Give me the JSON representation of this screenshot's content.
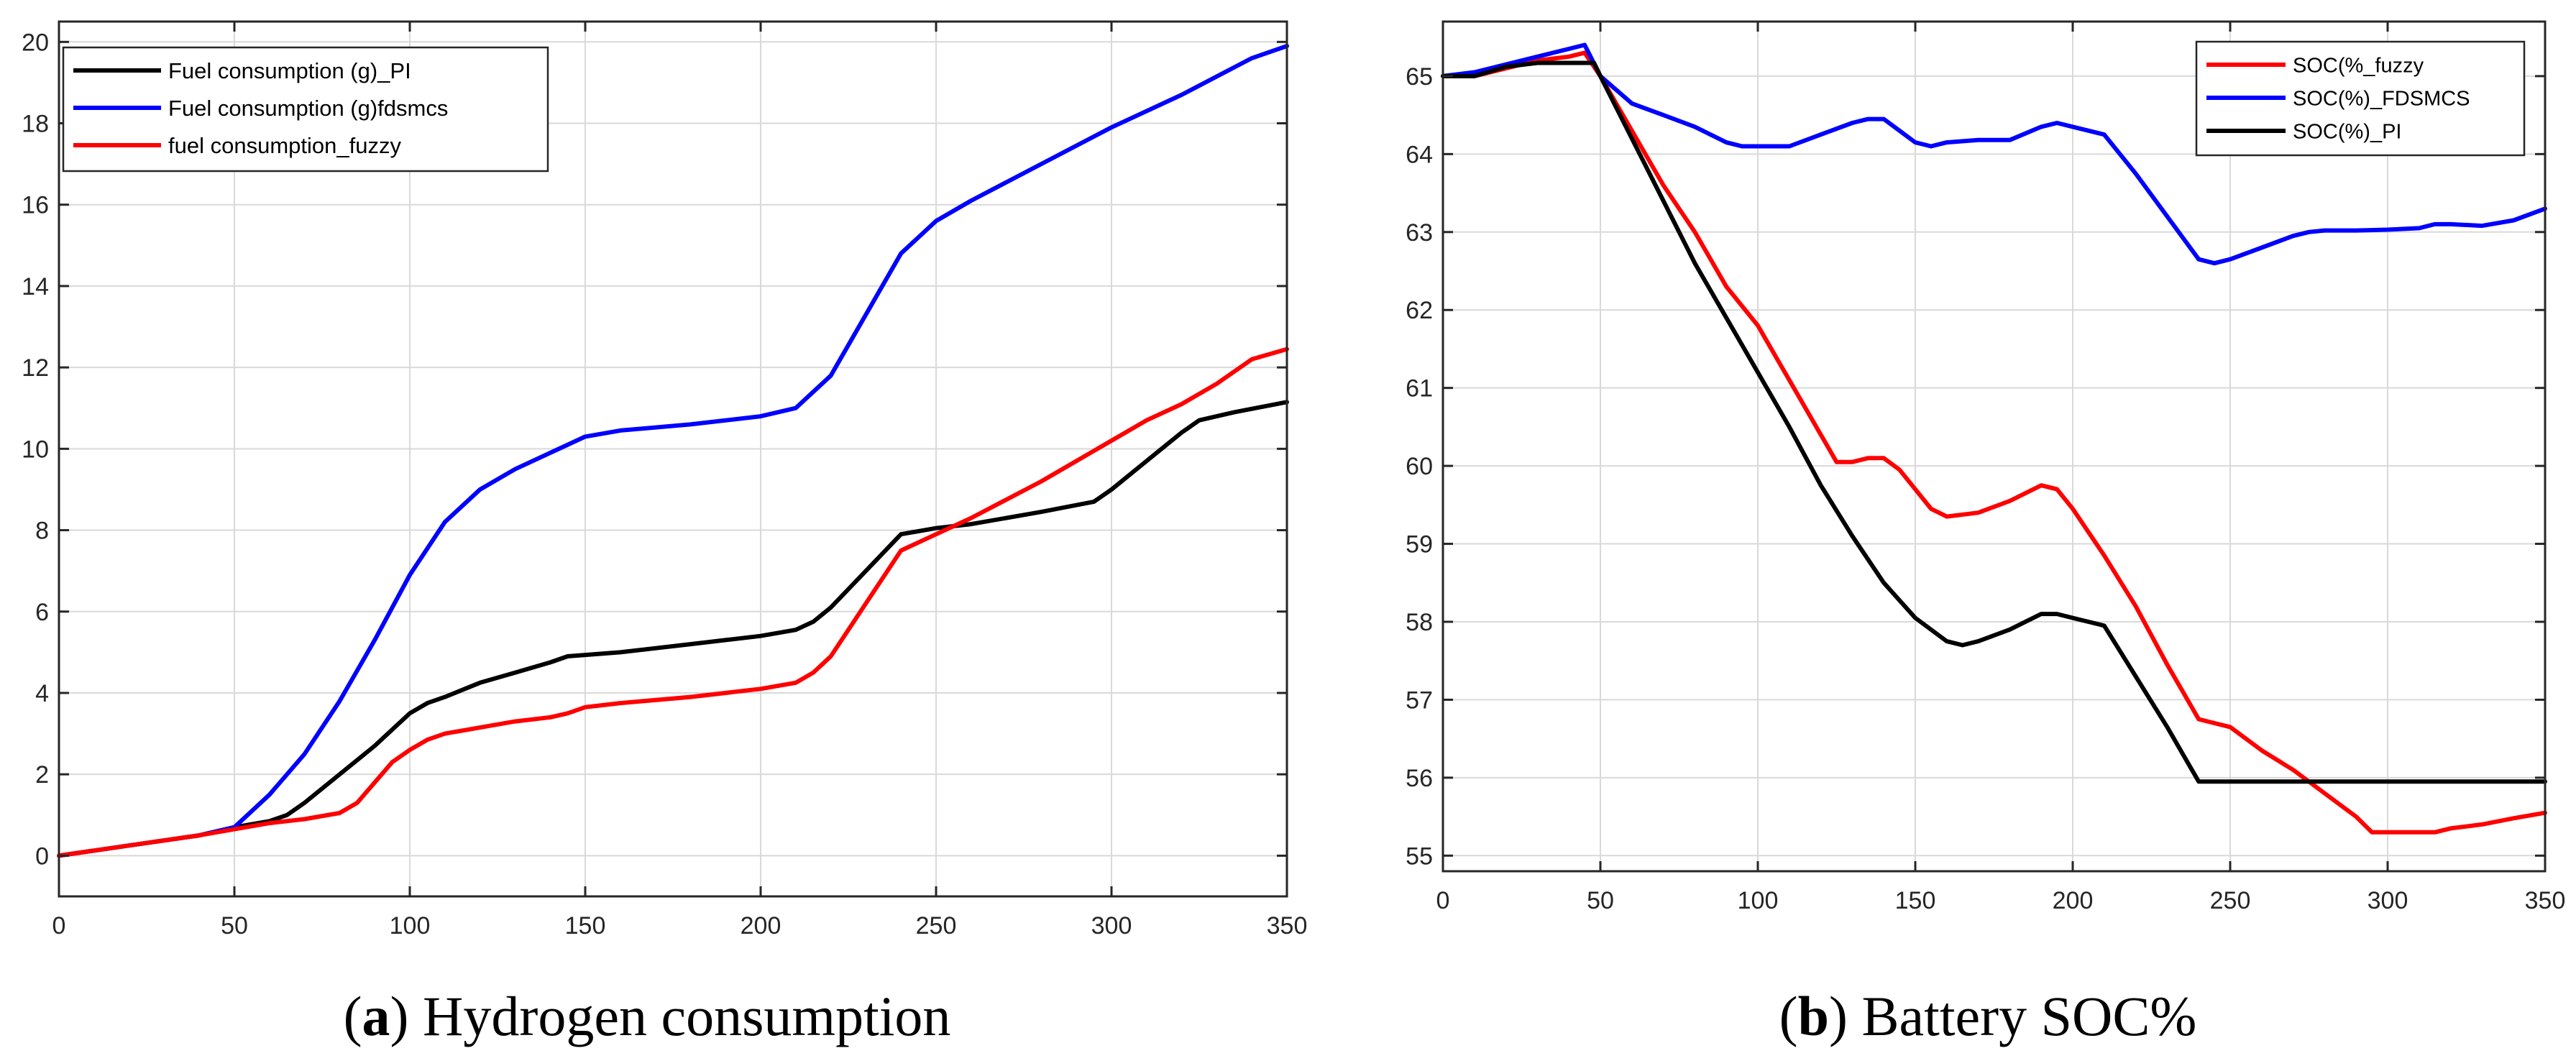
{
  "chart_data": [
    {
      "type": "line",
      "caption_letter": "a",
      "title": "Hydrogen consumption",
      "xlabel": "",
      "ylabel": "",
      "xlim": [
        0,
        350
      ],
      "ylim": [
        -1,
        20.5
      ],
      "xticks": [
        0,
        50,
        100,
        150,
        200,
        250,
        300,
        350
      ],
      "xtick_labels": [
        "0",
        "50",
        "100",
        "150",
        "200",
        "250",
        "300",
        "350"
      ],
      "yticks": [
        0,
        2,
        4,
        6,
        8,
        10,
        12,
        14,
        16,
        18,
        20
      ],
      "ytick_labels": [
        "0",
        "2",
        "4",
        "6",
        "8",
        "10",
        "12",
        "14",
        "16",
        "18",
        "20"
      ],
      "grid": true,
      "legend_position": "top-left",
      "series": [
        {
          "name": "Fuel consumption (g)_PI",
          "color": "#000000",
          "x": [
            0,
            20,
            40,
            50,
            60,
            65,
            70,
            80,
            90,
            95,
            100,
            105,
            110,
            120,
            130,
            140,
            145,
            160,
            180,
            190,
            200,
            210,
            215,
            220,
            230,
            240,
            250,
            260,
            280,
            295,
            300,
            310,
            320,
            325,
            335,
            350
          ],
          "y": [
            0,
            0.25,
            0.5,
            0.7,
            0.85,
            1.0,
            1.3,
            2.0,
            2.7,
            3.1,
            3.5,
            3.75,
            3.9,
            4.25,
            4.5,
            4.75,
            4.9,
            5.0,
            5.2,
            5.3,
            5.4,
            5.55,
            5.75,
            6.1,
            7.0,
            7.9,
            8.05,
            8.15,
            8.45,
            8.7,
            9.0,
            9.7,
            10.4,
            10.7,
            10.9,
            11.15
          ]
        },
        {
          "name": "Fuel consumption (g)fdsmcs",
          "color": "#0000ff",
          "x": [
            0,
            20,
            40,
            50,
            60,
            70,
            80,
            90,
            100,
            110,
            120,
            130,
            140,
            150,
            160,
            180,
            200,
            210,
            220,
            230,
            240,
            250,
            260,
            280,
            300,
            320,
            340,
            350
          ],
          "y": [
            0,
            0.25,
            0.5,
            0.7,
            1.5,
            2.5,
            3.8,
            5.3,
            6.9,
            8.2,
            9.0,
            9.5,
            9.9,
            10.3,
            10.45,
            10.6,
            10.8,
            11.0,
            11.8,
            13.3,
            14.8,
            15.6,
            16.1,
            17.0,
            17.9,
            18.7,
            19.6,
            19.9
          ]
        },
        {
          "name": "fuel consumption_fuzzy",
          "color": "#ff0000",
          "x": [
            0,
            20,
            40,
            50,
            60,
            70,
            80,
            85,
            90,
            95,
            100,
            105,
            110,
            120,
            130,
            140,
            145,
            150,
            160,
            180,
            200,
            210,
            215,
            220,
            230,
            240,
            250,
            260,
            280,
            300,
            310,
            320,
            330,
            340,
            350
          ],
          "y": [
            0,
            0.25,
            0.5,
            0.65,
            0.8,
            0.9,
            1.05,
            1.3,
            1.8,
            2.3,
            2.6,
            2.85,
            3.0,
            3.15,
            3.3,
            3.4,
            3.5,
            3.65,
            3.75,
            3.9,
            4.1,
            4.25,
            4.5,
            4.9,
            6.2,
            7.5,
            7.9,
            8.3,
            9.2,
            10.2,
            10.7,
            11.1,
            11.6,
            12.2,
            12.45
          ]
        }
      ]
    },
    {
      "type": "line",
      "caption_letter": "b",
      "title": "Battery SOC%",
      "xlabel": "",
      "ylabel": "",
      "xlim": [
        0,
        350
      ],
      "ylim": [
        54.8,
        65.7
      ],
      "xticks": [
        0,
        50,
        100,
        150,
        200,
        250,
        300,
        350
      ],
      "xtick_labels": [
        "0",
        "50",
        "100",
        "150",
        "200",
        "250",
        "300",
        "350"
      ],
      "yticks": [
        55,
        56,
        57,
        58,
        59,
        60,
        61,
        62,
        63,
        64,
        65
      ],
      "ytick_labels": [
        "55",
        "56",
        "57",
        "58",
        "59",
        "60",
        "61",
        "62",
        "63",
        "64",
        "65"
      ],
      "grid": true,
      "legend_position": "top-right",
      "series": [
        {
          "name": "SOC(%_fuzzy",
          "color": "#ff0000",
          "x": [
            0,
            10,
            20,
            30,
            40,
            45,
            50,
            60,
            70,
            80,
            90,
            100,
            110,
            120,
            125,
            130,
            135,
            140,
            145,
            150,
            155,
            160,
            170,
            180,
            190,
            195,
            200,
            210,
            220,
            230,
            240,
            245,
            250,
            260,
            270,
            280,
            290,
            295,
            300,
            310,
            315,
            320,
            330,
            340,
            350
          ],
          "y": [
            65.0,
            65.0,
            65.1,
            65.2,
            65.25,
            65.3,
            65.0,
            64.3,
            63.6,
            63.0,
            62.3,
            61.8,
            61.1,
            60.4,
            60.05,
            60.05,
            60.1,
            60.1,
            59.95,
            59.7,
            59.45,
            59.35,
            59.4,
            59.55,
            59.75,
            59.7,
            59.45,
            58.85,
            58.2,
            57.45,
            56.75,
            56.7,
            56.65,
            56.35,
            56.1,
            55.8,
            55.5,
            55.3,
            55.3,
            55.3,
            55.3,
            55.35,
            55.4,
            55.48,
            55.55
          ]
        },
        {
          "name": "SOC(%)_FDSMCS",
          "color": "#0000ff",
          "x": [
            0,
            10,
            20,
            30,
            40,
            45,
            50,
            60,
            70,
            80,
            90,
            95,
            100,
            110,
            120,
            130,
            135,
            140,
            145,
            150,
            155,
            160,
            170,
            180,
            190,
            195,
            200,
            210,
            220,
            230,
            240,
            245,
            250,
            260,
            270,
            275,
            280,
            290,
            300,
            310,
            315,
            320,
            330,
            340,
            350
          ],
          "y": [
            65.0,
            65.05,
            65.15,
            65.25,
            65.35,
            65.4,
            65.0,
            64.65,
            64.5,
            64.35,
            64.15,
            64.1,
            64.1,
            64.1,
            64.25,
            64.4,
            64.45,
            64.45,
            64.3,
            64.15,
            64.1,
            64.15,
            64.18,
            64.18,
            64.35,
            64.4,
            64.35,
            64.25,
            63.75,
            63.2,
            62.65,
            62.6,
            62.65,
            62.8,
            62.95,
            63.0,
            63.02,
            63.02,
            63.03,
            63.05,
            63.1,
            63.1,
            63.08,
            63.15,
            63.3
          ]
        },
        {
          "name": "SOC(%)_PI",
          "color": "#000000",
          "x": [
            0,
            10,
            20,
            30,
            40,
            48,
            50,
            60,
            70,
            80,
            90,
            100,
            110,
            120,
            130,
            140,
            150,
            160,
            165,
            170,
            180,
            190,
            195,
            200,
            210,
            220,
            230,
            240,
            245,
            250,
            260,
            280,
            300,
            320,
            340,
            350
          ],
          "y": [
            65.0,
            65.0,
            65.12,
            65.17,
            65.17,
            65.17,
            65.0,
            64.2,
            63.4,
            62.6,
            61.9,
            61.2,
            60.5,
            59.75,
            59.1,
            58.5,
            58.05,
            57.75,
            57.7,
            57.75,
            57.9,
            58.1,
            58.1,
            58.05,
            57.95,
            57.3,
            56.65,
            55.95,
            55.95,
            55.95,
            55.95,
            55.95,
            55.95,
            55.95,
            55.95,
            55.95
          ]
        }
      ]
    }
  ]
}
